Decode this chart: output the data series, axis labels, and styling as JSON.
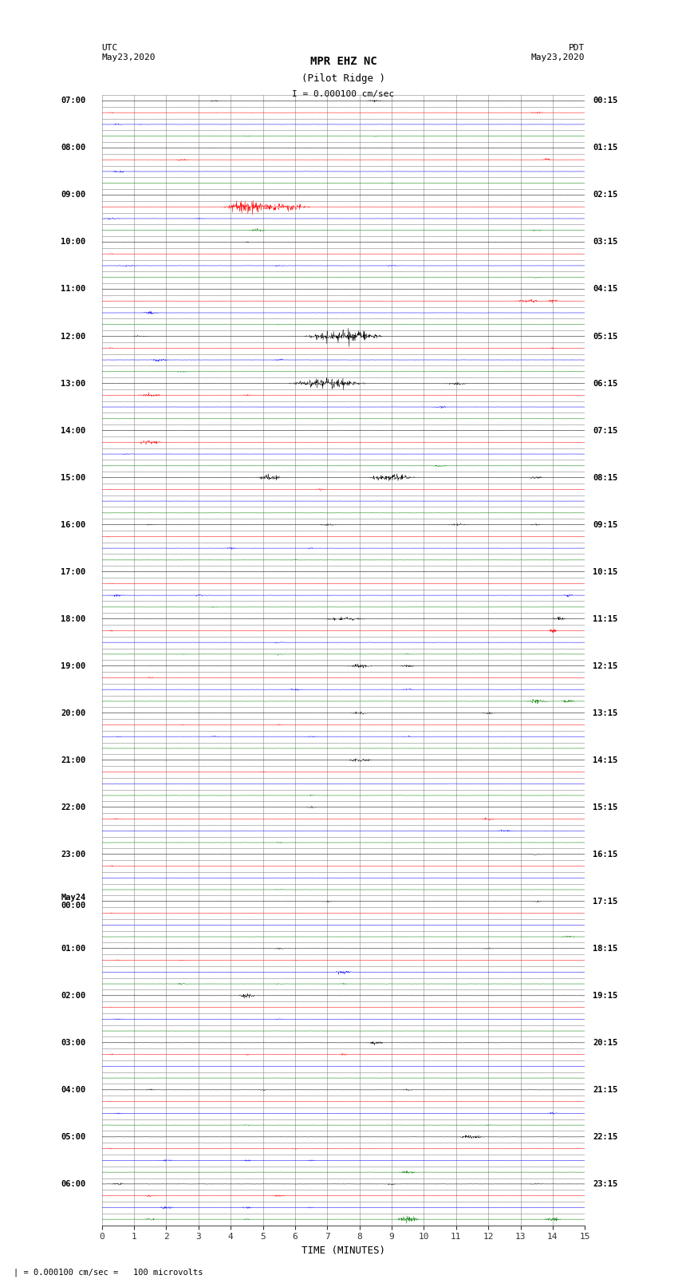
{
  "title_line1": "MPR EHZ NC",
  "title_line2": "(Pilot Ridge )",
  "scale_label": "I = 0.000100 cm/sec",
  "left_header": "UTC\nMay23,2020",
  "right_header": "PDT\nMay23,2020",
  "xlabel": "TIME (MINUTES)",
  "bottom_label": "| = 0.000100 cm/sec =   100 microvolts",
  "utc_hours": [
    "07:00",
    "08:00",
    "09:00",
    "10:00",
    "11:00",
    "12:00",
    "13:00",
    "14:00",
    "15:00",
    "16:00",
    "17:00",
    "18:00",
    "19:00",
    "20:00",
    "21:00",
    "22:00",
    "23:00",
    "May24\n00:00",
    "01:00",
    "02:00",
    "03:00",
    "04:00",
    "05:00",
    "06:00"
  ],
  "pdt_hours": [
    "00:15",
    "01:15",
    "02:15",
    "03:15",
    "04:15",
    "05:15",
    "06:15",
    "07:15",
    "08:15",
    "09:15",
    "10:15",
    "11:15",
    "12:15",
    "13:15",
    "14:15",
    "15:15",
    "16:15",
    "17:15",
    "18:15",
    "19:15",
    "20:15",
    "21:15",
    "22:15",
    "23:15"
  ],
  "colors": [
    "black",
    "red",
    "blue",
    "green"
  ],
  "num_hours": 24,
  "rows_per_hour": 4,
  "minutes": 15,
  "noise_scale": 0.012,
  "fig_width": 8.5,
  "fig_height": 16.13,
  "bg_color": "white",
  "grid_color": "#888888",
  "trace_lw": 0.35
}
